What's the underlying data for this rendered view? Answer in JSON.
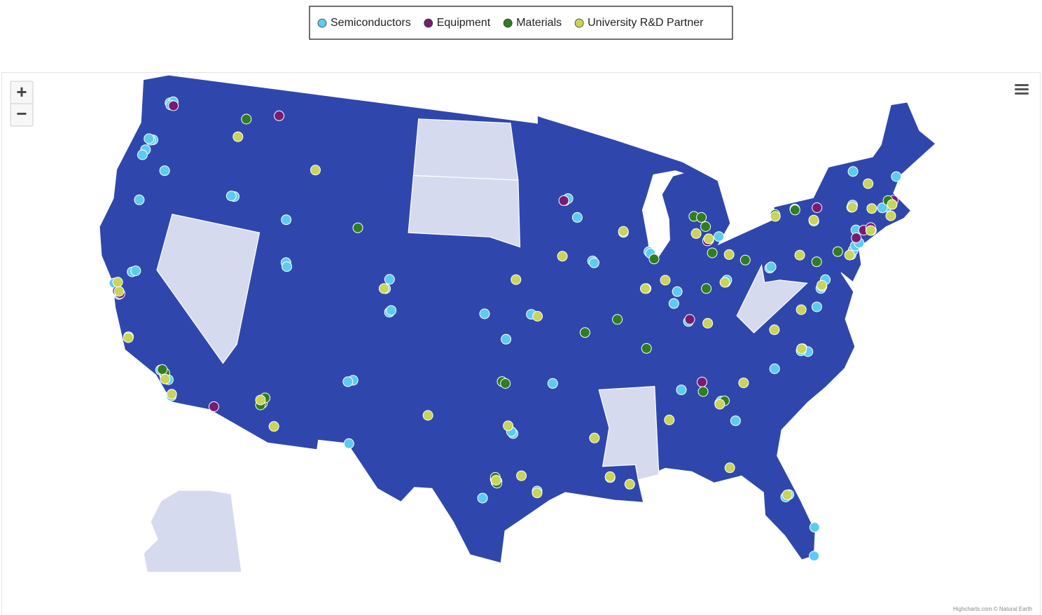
{
  "chart_data": {
    "type": "map",
    "series": [
      {
        "name": "Semiconductors",
        "color": "#5ccbf2",
        "points": [
          [
            -122.3,
            47.6
          ],
          [
            -122.1,
            47.7
          ],
          [
            -122.2,
            47.5
          ],
          [
            -122.7,
            45.5
          ],
          [
            -122.85,
            45.45
          ],
          [
            -123.0,
            45.5
          ],
          [
            -123.0,
            44.9
          ],
          [
            -123.1,
            44.6
          ],
          [
            -121.3,
            44.1
          ],
          [
            -122.4,
            42.3
          ],
          [
            -116.2,
            43.6
          ],
          [
            -116.4,
            43.6
          ],
          [
            -112.4,
            42.9
          ],
          [
            -122.0,
            37.4
          ],
          [
            -121.9,
            37.3
          ],
          [
            -122.4,
            37.8
          ],
          [
            -121.5,
            38.6
          ],
          [
            -121.3,
            38.7
          ],
          [
            -118.2,
            34.0
          ],
          [
            -117.9,
            33.8
          ],
          [
            -117.6,
            33.6
          ],
          [
            -117.2,
            32.8
          ],
          [
            -120.6,
            35.3
          ],
          [
            -111.9,
            40.7
          ],
          [
            -111.8,
            40.5
          ],
          [
            -105.0,
            40.5
          ],
          [
            -105.2,
            40.0
          ],
          [
            -104.8,
            38.8
          ],
          [
            -104.7,
            38.9
          ],
          [
            -106.6,
            35.1
          ],
          [
            -106.9,
            35.0
          ],
          [
            -97.7,
            30.3
          ],
          [
            -97.8,
            30.4
          ],
          [
            -98.5,
            29.4
          ],
          [
            -96.8,
            32.8
          ],
          [
            -96.9,
            32.9
          ],
          [
            -95.4,
            29.8
          ],
          [
            -106.4,
            31.8
          ],
          [
            -97.3,
            37.7
          ],
          [
            -95.7,
            39.0
          ],
          [
            -98.7,
            39.0
          ],
          [
            -93.3,
            44.9
          ],
          [
            -93.1,
            45.0
          ],
          [
            -92.5,
            44.0
          ],
          [
            -91.6,
            41.7
          ],
          [
            -91.5,
            41.6
          ],
          [
            -89.4,
            43.1
          ],
          [
            -87.8,
            42.0
          ],
          [
            -87.7,
            41.9
          ],
          [
            -88.2,
            40.1
          ],
          [
            -86.2,
            39.8
          ],
          [
            -86.5,
            39.2
          ],
          [
            -83.0,
            40.0
          ],
          [
            -82.9,
            40.1
          ],
          [
            -80.0,
            40.4
          ],
          [
            -79.9,
            40.45
          ],
          [
            -85.7,
            38.2
          ],
          [
            -86.6,
            34.7
          ],
          [
            -84.4,
            33.8
          ],
          [
            -84.3,
            33.9
          ],
          [
            -83.6,
            32.8
          ],
          [
            -94.4,
            35.4
          ],
          [
            -78.9,
            36.0
          ],
          [
            -78.6,
            35.8
          ],
          [
            -79.0,
            35.9
          ],
          [
            -80.8,
            35.2
          ],
          [
            -77.5,
            38.0
          ],
          [
            -77.0,
            38.9
          ],
          [
            -76.6,
            39.3
          ],
          [
            -76.9,
            39.0
          ],
          [
            -74.6,
            40.3
          ],
          [
            -74.4,
            40.5
          ],
          [
            -74.2,
            40.7
          ],
          [
            -73.9,
            40.8
          ],
          [
            -73.8,
            42.7
          ],
          [
            -73.7,
            42.8
          ],
          [
            -76.5,
            42.4
          ],
          [
            -77.6,
            43.2
          ],
          [
            -73.9,
            41.5
          ],
          [
            -73.1,
            44.5
          ],
          [
            -71.1,
            42.4
          ],
          [
            -71.2,
            42.5
          ],
          [
            -71.3,
            42.4
          ],
          [
            -71.5,
            42.3
          ],
          [
            -71.8,
            42.3
          ],
          [
            -70.3,
            43.7
          ],
          [
            -72.9,
            41.3
          ],
          [
            -81.4,
            28.5
          ],
          [
            -81.2,
            28.6
          ],
          [
            -80.1,
            26.7
          ],
          [
            -80.4,
            25.2
          ],
          [
            -83.7,
            42.3
          ],
          [
            -83.0,
            42.4
          ]
        ]
      },
      {
        "name": "Equipment",
        "color": "#7a1b72",
        "points": [
          [
            -122.0,
            47.5
          ],
          [
            -122.05,
            37.45
          ],
          [
            -121.85,
            37.35
          ],
          [
            -114.6,
            32.7
          ],
          [
            -114.3,
            48.2
          ],
          [
            -93.4,
            44.9
          ],
          [
            -97.75,
            30.25
          ],
          [
            -91.2,
            30.4
          ],
          [
            -85.6,
            38.3
          ],
          [
            -85.3,
            35.0
          ],
          [
            -83.8,
            42.25
          ],
          [
            -76.1,
            43.05
          ],
          [
            -74.0,
            41.1
          ],
          [
            -73.4,
            41.4
          ],
          [
            -72.9,
            41.45
          ],
          [
            -70.95,
            42.55
          ]
        ]
      },
      {
        "name": "Materials",
        "color": "#2f7d20",
        "points": [
          [
            -116.6,
            47.7
          ],
          [
            -107.5,
            43.0
          ],
          [
            -111.9,
            33.4
          ],
          [
            -111.8,
            33.3
          ],
          [
            -111.7,
            33.6
          ],
          [
            -111.9,
            33.2
          ],
          [
            -117.9,
            33.9
          ],
          [
            -118.1,
            34.05
          ],
          [
            -97.8,
            30.5
          ],
          [
            -97.7,
            30.2
          ],
          [
            -97.5,
            35.5
          ],
          [
            -97.3,
            35.4
          ],
          [
            -92.3,
            38.0
          ],
          [
            -90.2,
            38.6
          ],
          [
            -88.5,
            37.0
          ],
          [
            -87.5,
            41.6
          ],
          [
            -84.5,
            43.6
          ],
          [
            -83.8,
            43.0
          ],
          [
            -84.0,
            43.5
          ],
          [
            -83.6,
            41.6
          ],
          [
            -81.5,
            41.0
          ],
          [
            -84.3,
            39.8
          ],
          [
            -77.6,
            43.15
          ],
          [
            -79.0,
            43.1
          ],
          [
            -76.9,
            40.3
          ],
          [
            -75.4,
            40.6
          ],
          [
            -85.3,
            34.5
          ],
          [
            -84.1,
            33.9
          ],
          [
            -71.3,
            42.6
          ]
        ]
      },
      {
        "name": "University R&D Partner",
        "color": "#c9d458",
        "points": [
          [
            -116.9,
            46.7
          ],
          [
            -111.0,
            45.7
          ],
          [
            -121.95,
            37.45
          ],
          [
            -122.2,
            37.9
          ],
          [
            -120.6,
            35.25
          ],
          [
            -117.8,
            33.6
          ],
          [
            -117.2,
            32.9
          ],
          [
            -110.9,
            32.2
          ],
          [
            -111.95,
            33.45
          ],
          [
            -105.3,
            40.0
          ],
          [
            -97.75,
            30.35
          ],
          [
            -96.3,
            30.6
          ],
          [
            -101.9,
            33.6
          ],
          [
            -95.4,
            29.7
          ],
          [
            -97.1,
            33.2
          ],
          [
            -95.3,
            38.9
          ],
          [
            -96.7,
            40.8
          ],
          [
            -93.6,
            42.0
          ],
          [
            -89.4,
            43.15
          ],
          [
            -88.25,
            40.1
          ],
          [
            -86.9,
            40.45
          ],
          [
            -83.7,
            42.35
          ],
          [
            -84.5,
            42.7
          ],
          [
            -83.05,
            40.0
          ],
          [
            -82.5,
            41.4
          ],
          [
            -84.5,
            38.0
          ],
          [
            -91.2,
            30.45
          ],
          [
            -90.1,
            30.0
          ],
          [
            -92.0,
            32.5
          ],
          [
            -87.5,
            33.2
          ],
          [
            -84.4,
            33.75
          ],
          [
            -84.3,
            30.4
          ],
          [
            -81.3,
            28.6
          ],
          [
            -78.95,
            36.0
          ],
          [
            -82.8,
            34.7
          ],
          [
            -78.5,
            38.0
          ],
          [
            -80.4,
            37.2
          ],
          [
            -76.5,
            42.45
          ],
          [
            -73.75,
            42.7
          ],
          [
            -79.0,
            43.0
          ],
          [
            -74.7,
            40.3
          ],
          [
            -77.9,
            40.8
          ],
          [
            -72.95,
            41.3
          ],
          [
            -71.4,
            41.8
          ],
          [
            -72.5,
            42.4
          ],
          [
            -71.1,
            42.35
          ],
          [
            -72.3,
            43.7
          ],
          [
            -76.9,
            39.05
          ]
        ]
      }
    ],
    "credits": "Highcharts.com © Natural Earth"
  }
}
